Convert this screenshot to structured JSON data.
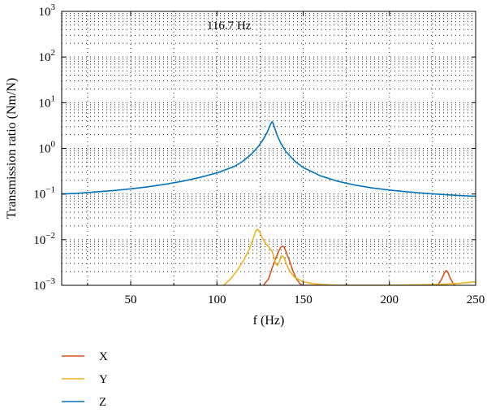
{
  "chart_data": {
    "type": "line",
    "annotation": "116.7 Hz",
    "xlabel": "f (Hz)",
    "ylabel": "Transmission ratio (Nm/N)",
    "xlim": [
      10,
      250
    ],
    "ylim": [
      0.001,
      1000
    ],
    "yscale": "log",
    "x_ticks": [
      50,
      100,
      150,
      200,
      250
    ],
    "x_tick_labels": [
      "50",
      "100",
      "150",
      "200",
      "250"
    ],
    "y_ticks": [
      0.001,
      0.01,
      0.1,
      1,
      10,
      100,
      1000
    ],
    "y_tick_labels": [
      {
        "base": "10",
        "exp": "−3"
      },
      {
        "base": "10",
        "exp": "−2"
      },
      {
        "base": "10",
        "exp": "−1"
      },
      {
        "base": "10",
        "exp": "0"
      },
      {
        "base": "10",
        "exp": "1"
      },
      {
        "base": "10",
        "exp": "2"
      },
      {
        "base": "10",
        "exp": "3"
      }
    ],
    "grid": "dotted",
    "legend_position": "below",
    "series": [
      {
        "name": "X",
        "color": "#d95319",
        "points": [
          [
            127,
            0.001
          ],
          [
            130,
            0.0014
          ],
          [
            132,
            0.0024
          ],
          [
            134,
            0.0038
          ],
          [
            136,
            0.0058
          ],
          [
            137,
            0.0068
          ],
          [
            138,
            0.0072
          ],
          [
            139,
            0.0068
          ],
          [
            140,
            0.0055
          ],
          [
            142,
            0.0035
          ],
          [
            144,
            0.0021
          ],
          [
            146,
            0.0014
          ],
          [
            148,
            0.0011
          ],
          [
            149.5,
            0.001
          ],
          [
            228,
            0.001
          ],
          [
            230,
            0.0013
          ],
          [
            232,
            0.0019
          ],
          [
            233,
            0.0021
          ],
          [
            234,
            0.0019
          ],
          [
            235,
            0.0015
          ],
          [
            237,
            0.0011
          ],
          [
            238,
            0.001
          ]
        ]
      },
      {
        "name": "Y",
        "color": "#edb120",
        "points": [
          [
            104,
            0.001
          ],
          [
            108,
            0.0014
          ],
          [
            112,
            0.0022
          ],
          [
            116,
            0.0038
          ],
          [
            119,
            0.0065
          ],
          [
            121,
            0.0105
          ],
          [
            122.5,
            0.0155
          ],
          [
            123.5,
            0.017
          ],
          [
            124.5,
            0.0155
          ],
          [
            126,
            0.0115
          ],
          [
            128,
            0.0085
          ],
          [
            130,
            0.007
          ],
          [
            132,
            0.0055
          ],
          [
            133,
            0.0042
          ],
          [
            134,
            0.003
          ],
          [
            135,
            0.0027
          ],
          [
            136,
            0.0032
          ],
          [
            137,
            0.0042
          ],
          [
            138,
            0.0044
          ],
          [
            139,
            0.004
          ],
          [
            140,
            0.0031
          ],
          [
            142,
            0.0021
          ],
          [
            145,
            0.0015
          ],
          [
            150,
            0.0012
          ],
          [
            155,
            0.0011
          ],
          [
            160,
            0.00105
          ],
          [
            170,
            0.001
          ],
          [
            185,
            0.001
          ],
          [
            200,
            0.001
          ],
          [
            215,
            0.00102
          ],
          [
            230,
            0.00105
          ],
          [
            240,
            0.0011
          ],
          [
            250,
            0.0012
          ]
        ]
      },
      {
        "name": "Z",
        "color": "#0072bd",
        "points": [
          [
            10,
            0.1
          ],
          [
            20,
            0.104
          ],
          [
            30,
            0.111
          ],
          [
            40,
            0.119
          ],
          [
            50,
            0.13
          ],
          [
            60,
            0.144
          ],
          [
            70,
            0.163
          ],
          [
            80,
            0.19
          ],
          [
            90,
            0.23
          ],
          [
            100,
            0.29
          ],
          [
            110,
            0.4
          ],
          [
            115,
            0.52
          ],
          [
            120,
            0.75
          ],
          [
            124,
            1.1
          ],
          [
            127,
            1.6
          ],
          [
            129,
            2.2
          ],
          [
            130.5,
            3.0
          ],
          [
            131.5,
            3.6
          ],
          [
            132,
            3.8
          ],
          [
            132.5,
            3.6
          ],
          [
            133.5,
            2.8
          ],
          [
            135,
            1.9
          ],
          [
            137,
            1.3
          ],
          [
            140,
            0.85
          ],
          [
            145,
            0.53
          ],
          [
            150,
            0.38
          ],
          [
            160,
            0.25
          ],
          [
            170,
            0.19
          ],
          [
            180,
            0.157
          ],
          [
            190,
            0.136
          ],
          [
            200,
            0.122
          ],
          [
            210,
            0.112
          ],
          [
            220,
            0.104
          ],
          [
            230,
            0.098
          ],
          [
            240,
            0.093
          ],
          [
            250,
            0.089
          ]
        ]
      }
    ]
  }
}
